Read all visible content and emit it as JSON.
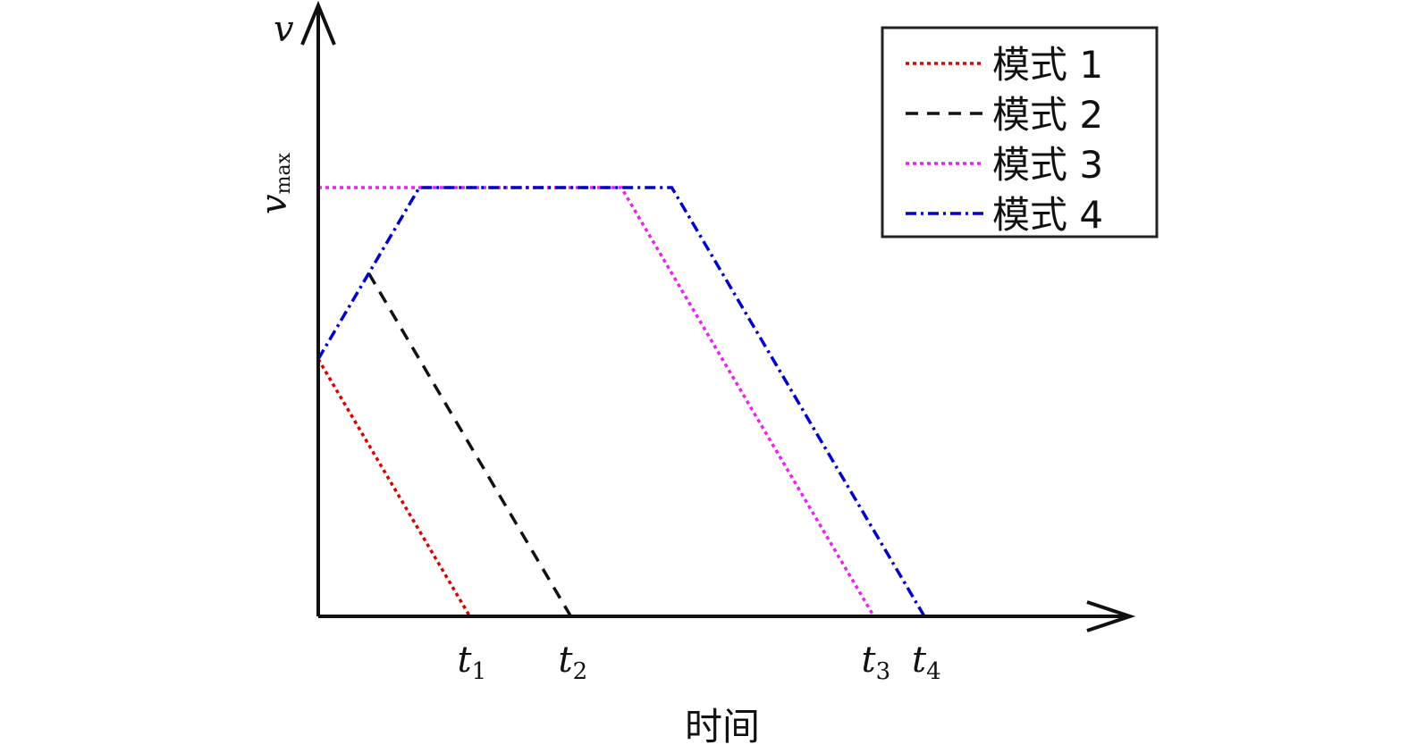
{
  "chart_data": {
    "type": "line",
    "xlabel": "时间",
    "ylabel": "v",
    "y_ticks": [
      {
        "value": 1.0,
        "label_main": "v",
        "label_sub": "max"
      }
    ],
    "x_ticks": [
      {
        "value": 3.0,
        "label_main": "t",
        "label_sub": "1"
      },
      {
        "value": 5.0,
        "label_main": "t",
        "label_sub": "2"
      },
      {
        "value": 11.0,
        "label_main": "t",
        "label_sub": "3"
      },
      {
        "value": 12.0,
        "label_main": "t",
        "label_sub": "4"
      }
    ],
    "xlim": [
      0,
      16
    ],
    "ylim": [
      0,
      1.45
    ],
    "grid": false,
    "legend_position": "top-right",
    "series": [
      {
        "name": "模式 1",
        "color": "#dd0000",
        "dash": "dotted",
        "x": [
          0,
          3.0
        ],
        "y": [
          0.6,
          0
        ]
      },
      {
        "name": "模式 2",
        "color": "#111111",
        "dash": "dashed",
        "x": [
          1.0,
          5.0
        ],
        "y": [
          0.8,
          0
        ]
      },
      {
        "name": "模式 3",
        "color": "#ee22ee",
        "dash": "dotted",
        "x": [
          0,
          6.0,
          11.0
        ],
        "y": [
          1.0,
          1.0,
          0
        ]
      },
      {
        "name": "模式 4",
        "color": "#0000cc",
        "dash": "dashdot",
        "x": [
          0,
          2.0,
          7.0,
          12.0
        ],
        "y": [
          0.6,
          1.0,
          1.0,
          0
        ]
      }
    ]
  }
}
